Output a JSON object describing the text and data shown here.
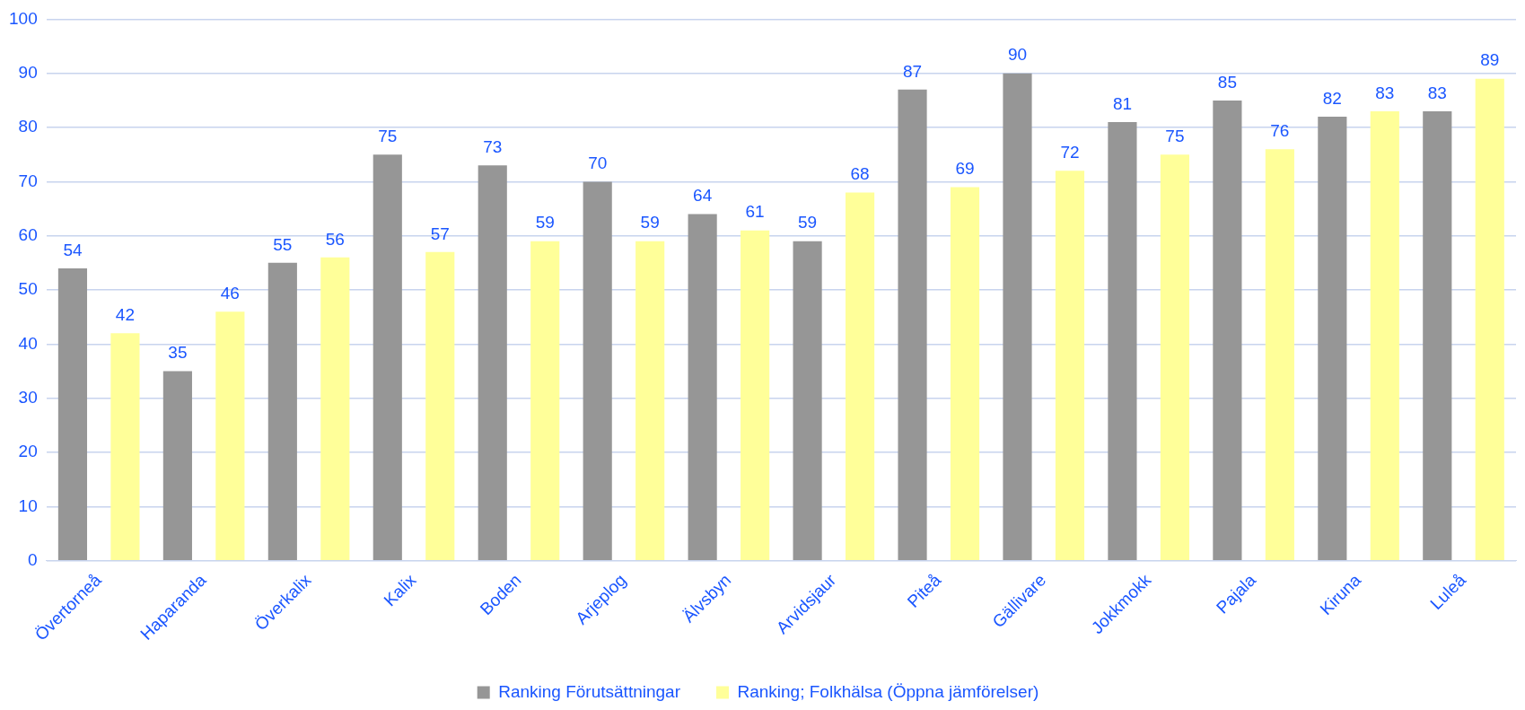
{
  "chart_data": {
    "type": "bar",
    "categories": [
      "Övertorneå",
      "Haparanda",
      "Överkalix",
      "Kalix",
      "Boden",
      "Arjeplog",
      "Älvsbyn",
      "Arvidsjaur",
      "Piteå",
      "Gällivare",
      "Jokkmokk",
      "Pajala",
      "Kiruna",
      "Luleå"
    ],
    "series": [
      {
        "name": "Ranking Förutsättningar",
        "color": "#969696",
        "values": [
          54,
          35,
          55,
          75,
          73,
          70,
          64,
          59,
          87,
          90,
          81,
          85,
          82,
          83
        ]
      },
      {
        "name": "Ranking; Folkhälsa (Öppna jämförelser)",
        "color": "#ffff99",
        "values": [
          42,
          46,
          56,
          57,
          59,
          59,
          61,
          68,
          69,
          72,
          75,
          76,
          83,
          89
        ]
      }
    ],
    "ylim": [
      0,
      100
    ],
    "yticks": [
      0,
      10,
      20,
      30,
      40,
      50,
      60,
      70,
      80,
      90,
      100
    ],
    "grid": "y",
    "legend": "bottom",
    "data_labels": true
  }
}
